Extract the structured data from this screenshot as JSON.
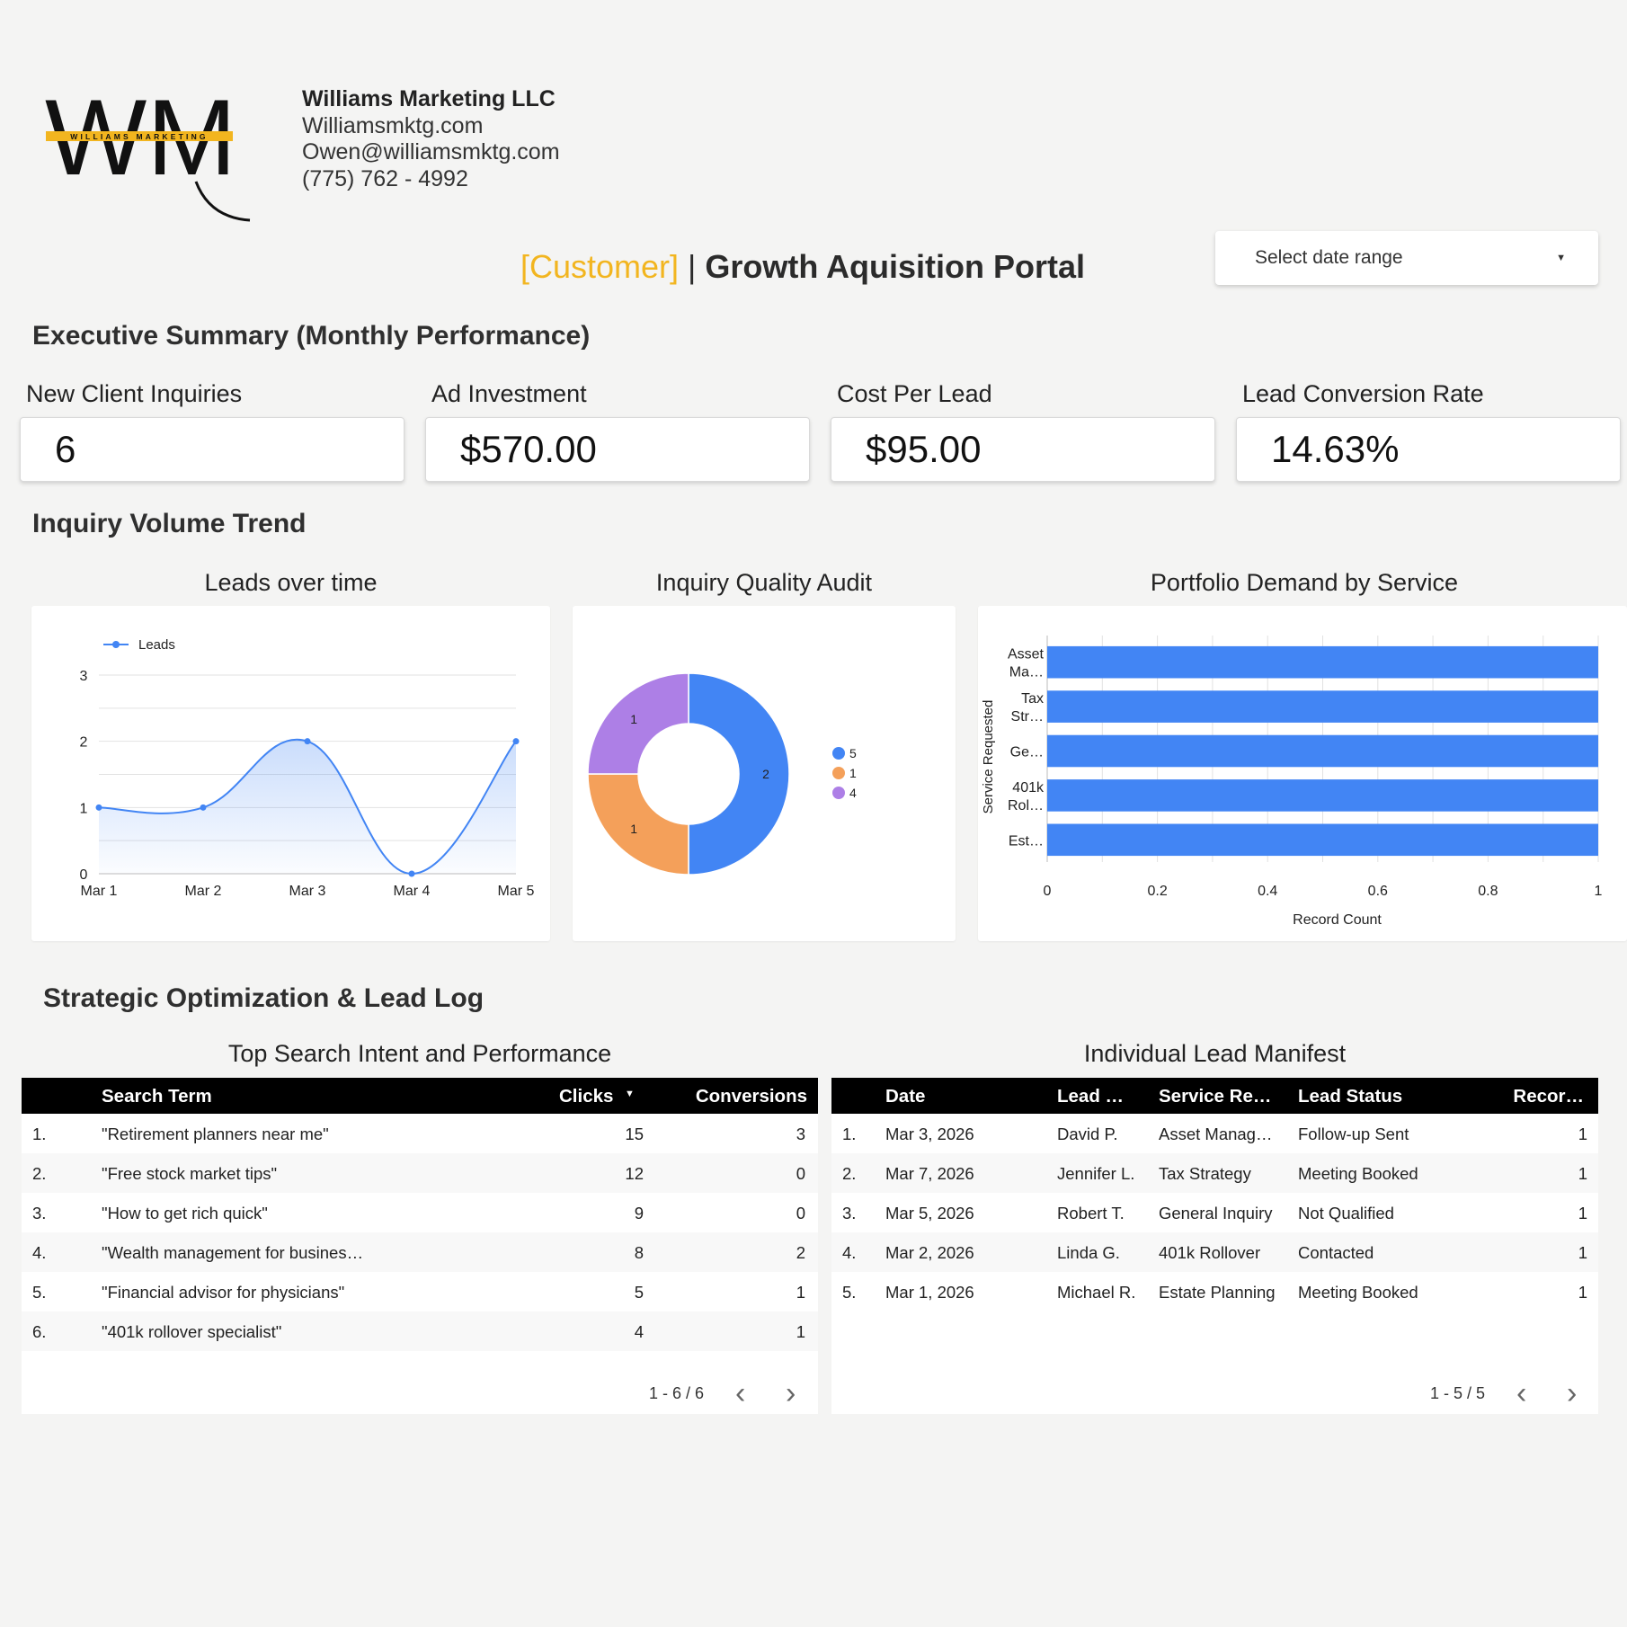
{
  "header": {
    "logo": {
      "letters": "WM",
      "banner_text": "WILLIAMS MARKETING"
    },
    "company_name": "Williams Marketing LLC",
    "website": "Williamsmktg.com",
    "email": "Owen@williamsmktg.com",
    "phone": "(775) 762 - 4992",
    "title_bracket": "[Customer]",
    "title_separator": "|",
    "title_main": "Growth Aquisition Portal",
    "date_range_label": "Select date range"
  },
  "colors": {
    "accent_yellow": "#f2b51f",
    "chart_blue": "#4285f4",
    "chart_orange": "#f4a05a",
    "chart_purple": "#ad7fe6"
  },
  "executive_summary": {
    "title": "Executive Summary (Monthly Performance)",
    "kpis": [
      {
        "label": "New Client Inquiries",
        "value": "6"
      },
      {
        "label": "Ad Investment",
        "value": "$570.00"
      },
      {
        "label": "Cost Per Lead",
        "value": "$95.00"
      },
      {
        "label": "Lead Conversion Rate",
        "value": "14.63%"
      }
    ]
  },
  "trend_section": {
    "title": "Inquiry Volume Trend"
  },
  "charts": {
    "leads_title": "Leads over time",
    "quality_title": "Inquiry Quality Audit",
    "portfolio_title": "Portfolio Demand by Service"
  },
  "chart_data": [
    {
      "type": "area",
      "title": "Leads over time",
      "x": [
        "Mar 1",
        "Mar 2",
        "Mar 3",
        "Mar 4",
        "Mar 5"
      ],
      "series": [
        {
          "name": "Leads",
          "values": [
            1,
            1,
            2,
            0,
            2
          ]
        }
      ],
      "ylim": [
        0,
        3
      ],
      "yticks": [
        "0",
        "1",
        "2",
        "3"
      ],
      "legend": "top-left",
      "grid": true
    },
    {
      "type": "pie",
      "title": "Inquiry Quality Audit",
      "slices": [
        {
          "legend": "5",
          "value": 2,
          "label": "2",
          "color": "#4285f4"
        },
        {
          "legend": "1",
          "value": 1,
          "label": "1",
          "color": "#f4a05a"
        },
        {
          "legend": "4",
          "value": 1,
          "label": "1",
          "color": "#ad7fe6"
        }
      ],
      "donut": true,
      "legend": "right"
    },
    {
      "type": "bar",
      "orientation": "horizontal",
      "title": "Portfolio Demand by Service",
      "categories": [
        [
          "Asset",
          "Ma…"
        ],
        [
          "Tax",
          "Str…"
        ],
        [
          "Ge…"
        ],
        [
          "401k",
          "Rol…"
        ],
        [
          "Est…"
        ]
      ],
      "values": [
        1,
        1,
        1,
        1,
        1
      ],
      "xlabel": "Record Count",
      "ylabel": "Service Requested",
      "xlim": [
        0,
        1
      ],
      "xticks": [
        "0",
        "0.2",
        "0.4",
        "0.6",
        "0.8",
        "1"
      ],
      "grid": true
    }
  ],
  "lead_log": {
    "title": "Strategic Optimization & Lead Log",
    "search_table": {
      "title": "Top Search Intent and Performance",
      "headers": {
        "term": "Search Term",
        "clicks": "Clicks",
        "sort_indicator": "▼",
        "conversions": "Conversions"
      },
      "rows": [
        {
          "num": "1.",
          "term": "\"Retirement planners near me\"",
          "clicks": "15",
          "conversions": "3"
        },
        {
          "num": "2.",
          "term": "\"Free stock market tips\"",
          "clicks": "12",
          "conversions": "0"
        },
        {
          "num": "3.",
          "term": "\"How to get rich quick\"",
          "clicks": "9",
          "conversions": "0"
        },
        {
          "num": "4.",
          "term": "\"Wealth management for busines…",
          "clicks": "8",
          "conversions": "2"
        },
        {
          "num": "5.",
          "term": "\"Financial advisor for physicians\"",
          "clicks": "5",
          "conversions": "1"
        },
        {
          "num": "6.",
          "term": "\"401k rollover specialist\"",
          "clicks": "4",
          "conversions": "1"
        }
      ],
      "pagination": "1 - 6 / 6",
      "prev": "‹",
      "next": "›"
    },
    "manifest_table": {
      "title": "Individual Lead Manifest",
      "headers": {
        "date": "Date",
        "lead": "Lead …",
        "service": "Service Re…",
        "status": "Lead Status",
        "record": "Recor…"
      },
      "rows": [
        {
          "num": "1.",
          "date": "Mar 3, 2026",
          "lead": "David P.",
          "service": "Asset Manag…",
          "status": "Follow-up Sent",
          "record": "1"
        },
        {
          "num": "2.",
          "date": "Mar 7, 2026",
          "lead": "Jennifer L.",
          "service": "Tax Strategy",
          "status": "Meeting Booked",
          "record": "1"
        },
        {
          "num": "3.",
          "date": "Mar 5, 2026",
          "lead": "Robert T.",
          "service": "General Inquiry",
          "status": "Not Qualified",
          "record": "1"
        },
        {
          "num": "4.",
          "date": "Mar 2, 2026",
          "lead": "Linda G.",
          "service": "401k Rollover",
          "status": "Contacted",
          "record": "1"
        },
        {
          "num": "5.",
          "date": "Mar 1, 2026",
          "lead": "Michael R.",
          "service": "Estate Planning",
          "status": "Meeting Booked",
          "record": "1"
        }
      ],
      "pagination": "1 - 5 / 5",
      "prev": "‹",
      "next": "›"
    }
  }
}
